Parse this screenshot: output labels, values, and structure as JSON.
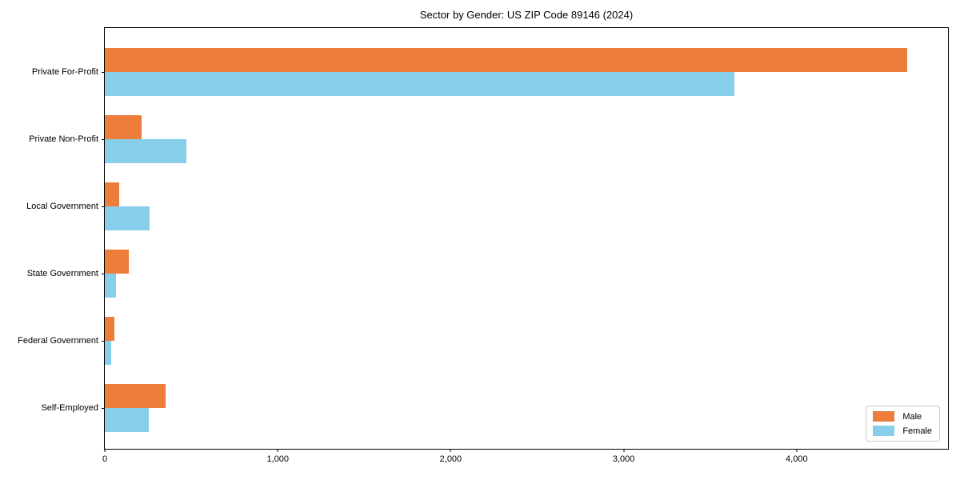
{
  "chart_data": {
    "type": "bar",
    "orientation": "horizontal",
    "title": "Sector by Gender: US ZIP Code 89146 (2024)",
    "categories": [
      "Private For-Profit",
      "Private Non-Profit",
      "Local Government",
      "State Government",
      "Federal Government",
      "Self-Employed"
    ],
    "series": [
      {
        "name": "Male",
        "color": "#ed7d3a",
        "values": [
          4640,
          215,
          82,
          138,
          57,
          351
        ]
      },
      {
        "name": "Female",
        "color": "#87ceeb",
        "values": [
          3640,
          470,
          258,
          65,
          35,
          254
        ]
      }
    ],
    "xlabel": "",
    "ylabel": "",
    "xlim": [
      0,
      4875
    ],
    "xticks": [
      0,
      1000,
      2000,
      3000,
      4000
    ],
    "xtick_labels": [
      "0",
      "1,000",
      "2,000",
      "3,000",
      "4,000"
    ],
    "grid": false,
    "legend_position": "lower-right",
    "plot_border_color": "#000000",
    "background_color": "#ffffff"
  }
}
